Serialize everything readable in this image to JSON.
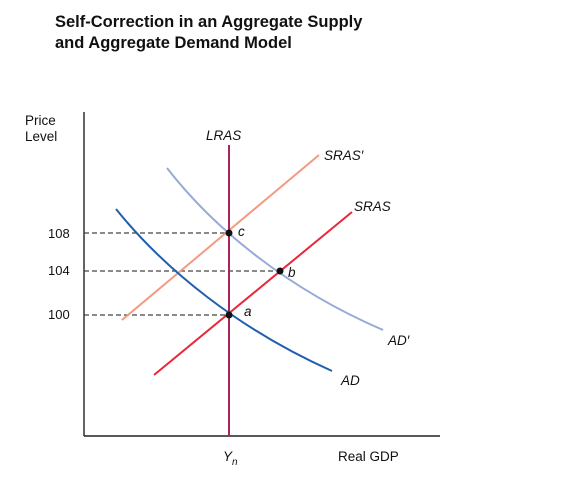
{
  "title": {
    "line1": "Self-Correction in an Aggregate Supply",
    "line2": "and Aggregate Demand Model"
  },
  "axes": {
    "y_label_line1": "Price",
    "y_label_line2": "Level",
    "x_label": "Real GDP",
    "x_tick": "Y",
    "x_tick_sub": "n"
  },
  "price_ticks": [
    "108",
    "104",
    "100"
  ],
  "curve_labels": {
    "lras": "LRAS",
    "sras_prime": "SRAS′",
    "sras": "SRAS",
    "ad_prime": "AD′",
    "ad": "AD"
  },
  "points": {
    "a": "a",
    "b": "b",
    "c": "c"
  },
  "colors": {
    "lras": "#a8245e",
    "sras": "#e8273a",
    "sras_prime": "#f39a83",
    "ad": "#1f5fae",
    "ad_prime": "#98aad8",
    "dashes": "#444444",
    "axis": "#222222"
  },
  "chart_data": {
    "type": "line",
    "xlabel": "Real GDP",
    "ylabel": "Price Level",
    "x_ticks": [
      "Yn"
    ],
    "y_ticks": [
      100,
      104,
      108
    ],
    "series": [
      {
        "name": "LRAS",
        "description": "vertical at Yn"
      },
      {
        "name": "SRAS",
        "description": "upward sloping, passes through a (Yn, 100) and b (104)"
      },
      {
        "name": "SRAS′",
        "description": "upward sloping, passes through c (Yn, 108)"
      },
      {
        "name": "AD",
        "description": "downward sloping, passes through a (Yn, 100)"
      },
      {
        "name": "AD′",
        "description": "downward sloping, passes through c (Yn, 108) and b (104)"
      }
    ],
    "points": [
      {
        "label": "a",
        "price": 100,
        "x": "Yn"
      },
      {
        "label": "b",
        "price": 104
      },
      {
        "label": "c",
        "price": 108,
        "x": "Yn"
      }
    ]
  }
}
